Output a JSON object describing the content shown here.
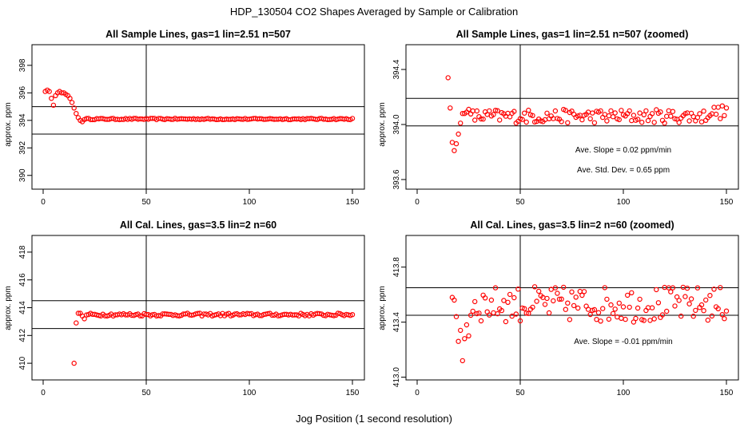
{
  "page": {
    "title": "HDP_130504  CO2 Shapes Averaged by Sample or Calibration",
    "xlabel": "Jog Position (1 second resolution)"
  },
  "colors": {
    "points": "#ff0000",
    "axis": "#000000"
  },
  "chart_data": [
    {
      "type": "scatter",
      "title": "All Sample Lines, gas=1 lin=2.51 n=507",
      "ylabel": "approx. ppm",
      "xlim": [
        0,
        150
      ],
      "ylim": [
        389,
        399.5
      ],
      "xticks": [
        0,
        50,
        100,
        150
      ],
      "yticks": [
        390,
        392,
        394,
        396,
        398
      ],
      "vline": 50,
      "hlines": [
        393,
        395
      ],
      "annotations": [],
      "series": [
        {
          "name": "sample",
          "mode": "sample",
          "start": 1,
          "end": 150,
          "base": 394.1,
          "amp": 0.05
        }
      ]
    },
    {
      "type": "scatter",
      "title": "All Sample Lines, gas=1 lin=2.51 n=507 (zoomed)",
      "ylabel": "approx. ppm",
      "xlim": [
        0,
        150
      ],
      "ylim": [
        393.53,
        394.58
      ],
      "xticks": [
        0,
        50,
        100,
        150
      ],
      "yticks": [
        393.6,
        394.0,
        394.4
      ],
      "vline": 50,
      "hlines": [
        393.99,
        394.19
      ],
      "annotations": [
        "Ave. Slope =  0.02  ppm/min",
        "Ave. Std. Dev. =  0.65  ppm"
      ],
      "series": [
        {
          "name": "sample-zoom",
          "mode": "sample-zoom",
          "start": 15,
          "end": 150,
          "base": 394.06,
          "amp": 0.04
        }
      ]
    },
    {
      "type": "scatter",
      "title": "All Cal. Lines, gas=3.5 lin=2 n=60",
      "ylabel": "approx. ppm",
      "xlim": [
        0,
        150
      ],
      "ylim": [
        408.8,
        419.2
      ],
      "xticks": [
        0,
        50,
        100,
        150
      ],
      "yticks": [
        410,
        412,
        414,
        416,
        418
      ],
      "vline": 50,
      "hlines": [
        412.5,
        414.5
      ],
      "annotations": [],
      "series": [
        {
          "name": "cal",
          "mode": "cal",
          "start": 15,
          "end": 150,
          "base": 413.55,
          "amp": 0.07
        }
      ]
    },
    {
      "type": "scatter",
      "title": "All Cal. Lines, gas=3.5 lin=2 n=60 (zoomed)",
      "ylabel": "approx. ppm",
      "xlim": [
        0,
        150
      ],
      "ylim": [
        412.98,
        414.03
      ],
      "xticks": [
        0,
        50,
        100,
        150
      ],
      "yticks": [
        413.0,
        413.4,
        413.8
      ],
      "vline": 50,
      "hlines": [
        413.45,
        413.65
      ],
      "annotations": [
        "Ave. Slope =  -0.01  ppm/min"
      ],
      "series": [
        {
          "name": "cal-zoom",
          "mode": "cal-zoom",
          "start": 17,
          "end": 150,
          "base": 413.55,
          "amp": 0.09
        }
      ]
    }
  ]
}
